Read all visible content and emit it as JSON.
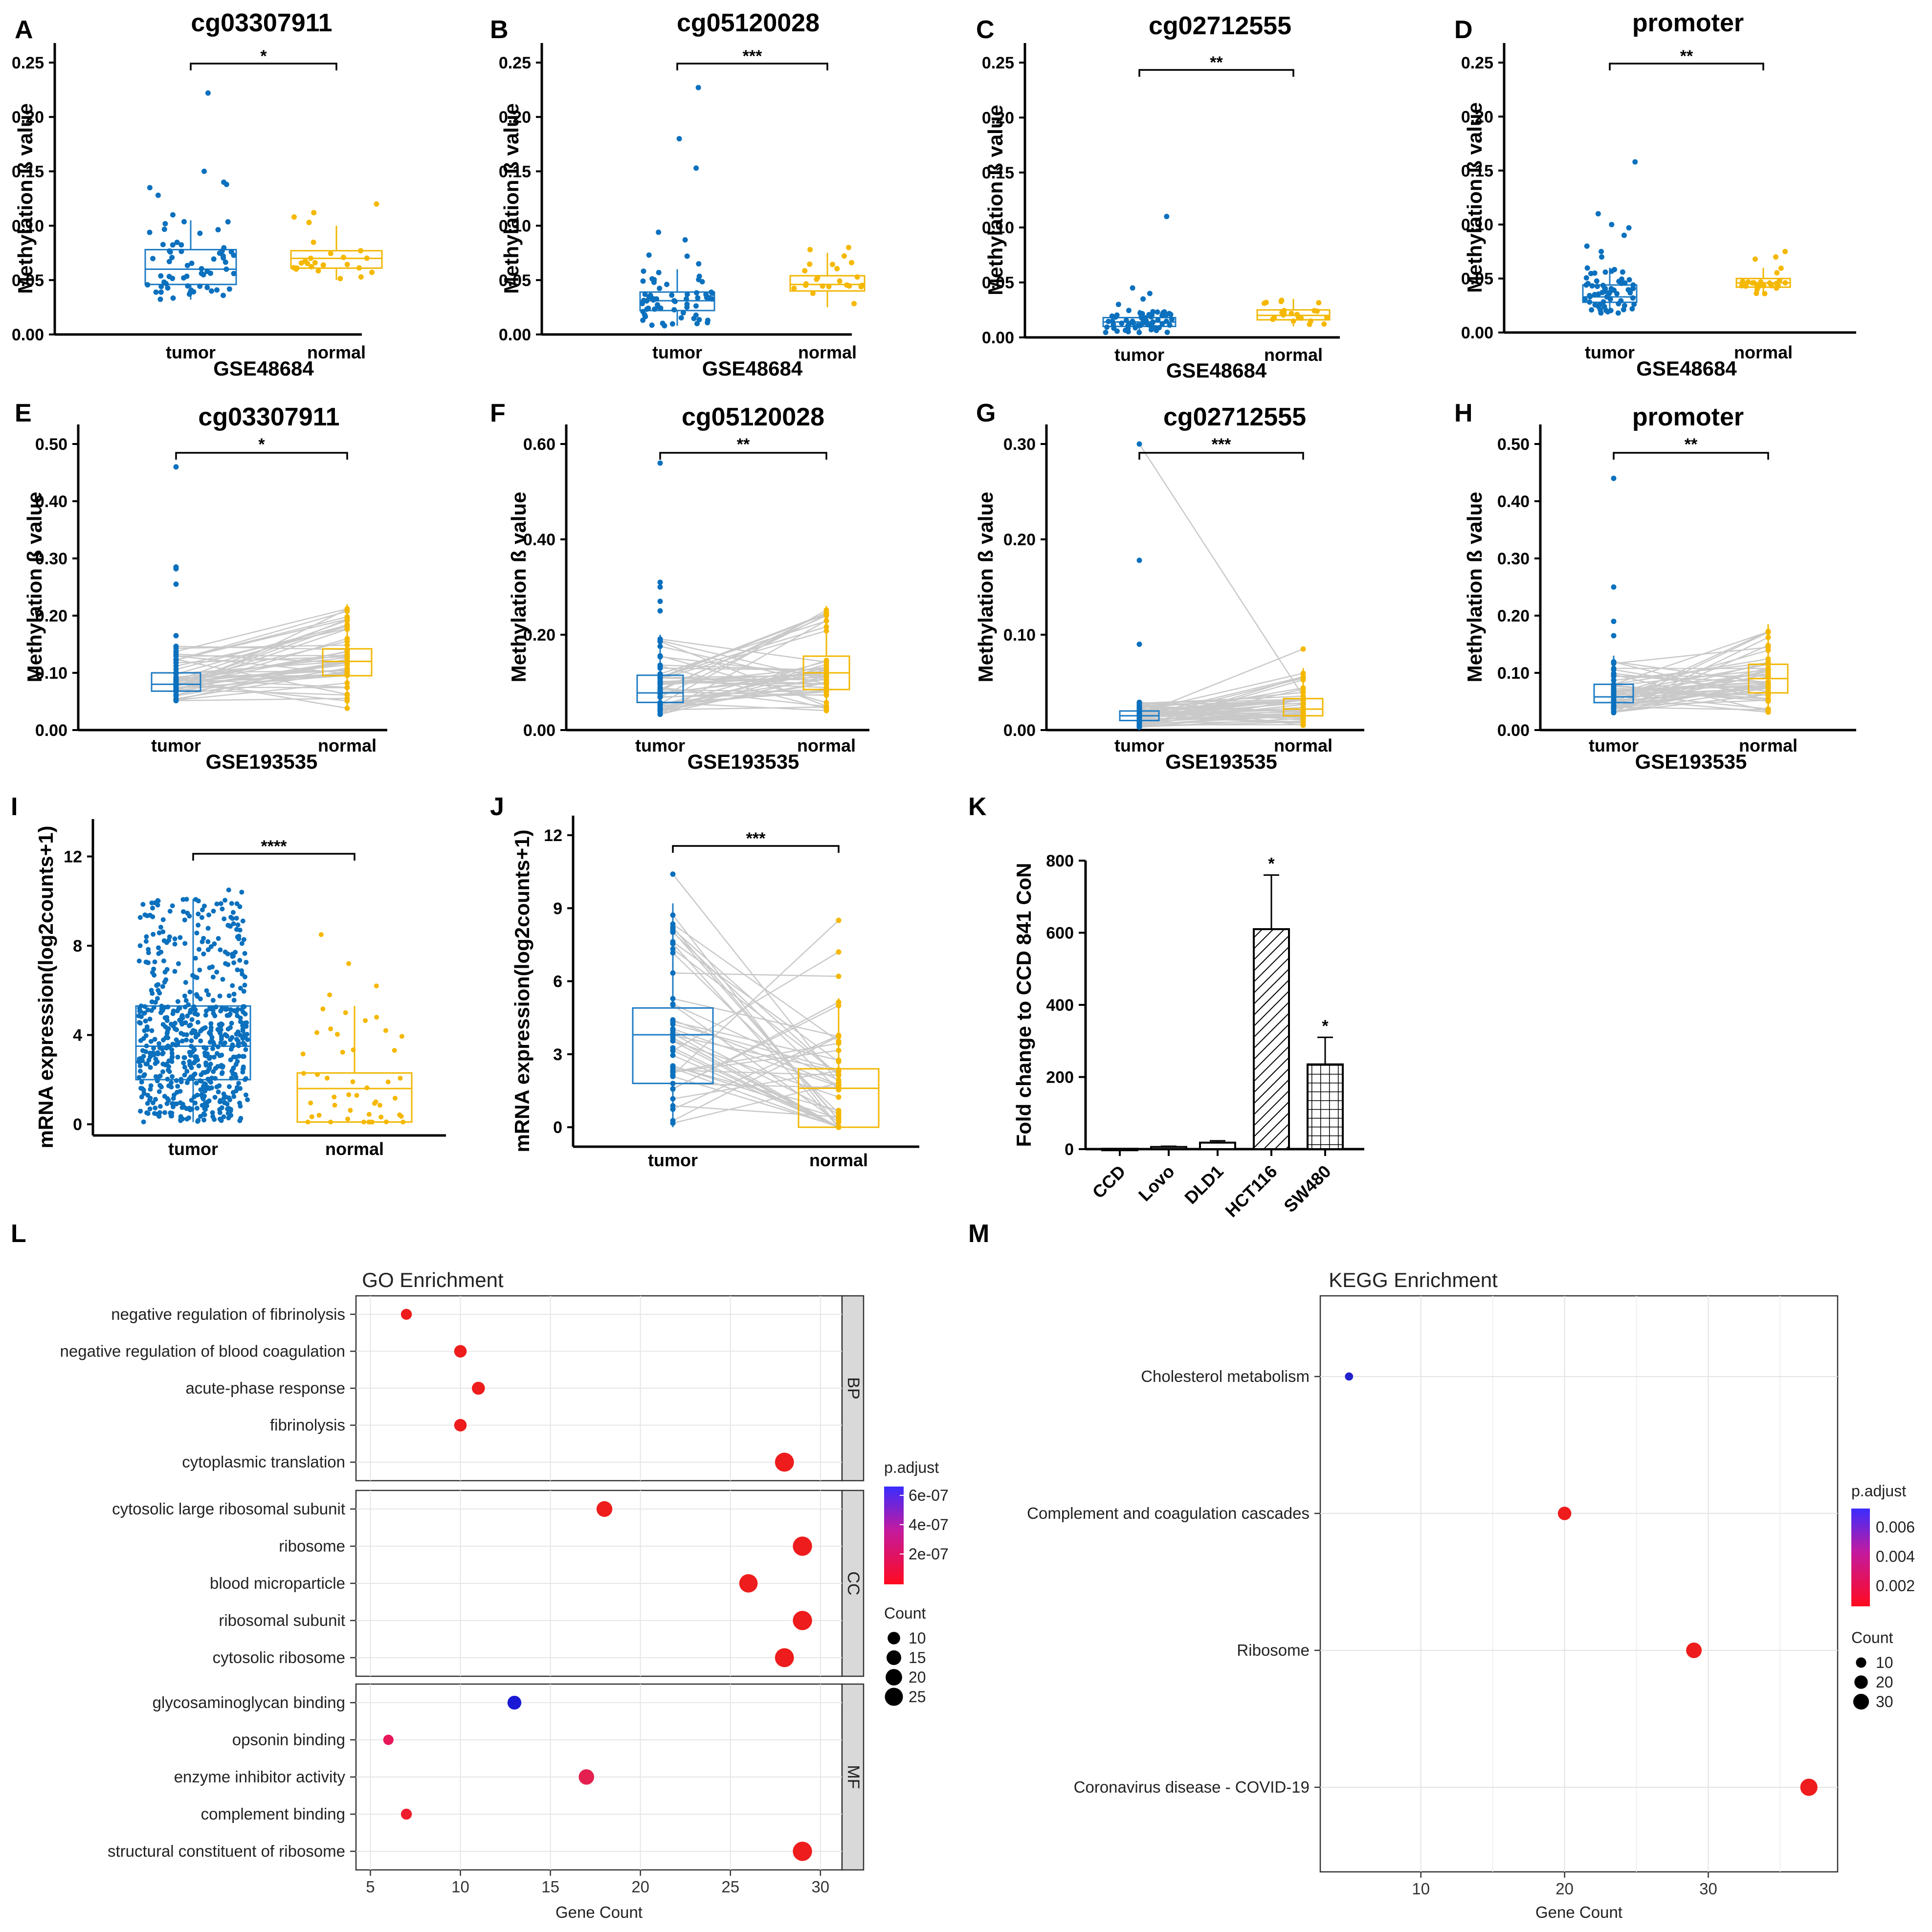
{
  "chart_data": [
    {
      "id": "A",
      "type": "box",
      "title": "cg03307911",
      "xlabel": "GSE48684",
      "ylabel": "Methylation ß value",
      "ylim": [
        0,
        0.25
      ],
      "ticks": [
        0,
        0.05,
        0.1,
        0.15,
        0.2,
        0.25
      ],
      "tick_labels": [
        "0.00",
        "0.05",
        "0.10",
        "0.15",
        "0.20",
        "0.25"
      ],
      "categories": [
        "tumor",
        "normal"
      ],
      "significance": "*",
      "paired": false,
      "boxes": [
        {
          "q1": 0.046,
          "median": 0.06,
          "q3": 0.078,
          "low": 0.032,
          "high": 0.105
        },
        {
          "q1": 0.061,
          "median": 0.07,
          "q3": 0.077,
          "low": 0.05,
          "high": 0.1
        }
      ],
      "outliers": [
        [
          0.222,
          0.15,
          0.14,
          0.138,
          0.135,
          0.128,
          0.11
        ],
        [
          0.12,
          0.112,
          0.108,
          0.103
        ]
      ],
      "n": [
        60,
        22
      ]
    },
    {
      "id": "B",
      "type": "box",
      "title": "cg05120028",
      "xlabel": "GSE48684",
      "ylabel": "Methylation ß value",
      "ylim": [
        0,
        0.25
      ],
      "ticks": [
        0,
        0.05,
        0.1,
        0.15,
        0.2,
        0.25
      ],
      "tick_labels": [
        "0.00",
        "0.05",
        "0.10",
        "0.15",
        "0.20",
        "0.25"
      ],
      "categories": [
        "tumor",
        "normal"
      ],
      "significance": "***",
      "paired": false,
      "boxes": [
        {
          "q1": 0.022,
          "median": 0.031,
          "q3": 0.039,
          "low": 0.008,
          "high": 0.06
        },
        {
          "q1": 0.04,
          "median": 0.046,
          "q3": 0.054,
          "low": 0.025,
          "high": 0.075
        }
      ],
      "outliers": [
        [
          0.227,
          0.18,
          0.153,
          0.094,
          0.087,
          0.073,
          0.072,
          0.065
        ],
        [
          0.08,
          0.078
        ]
      ],
      "n": [
        60,
        22
      ]
    },
    {
      "id": "C",
      "type": "box",
      "title": "cg02712555",
      "xlabel": "GSE48684",
      "ylabel": "Methylation ß value",
      "ylim": [
        0,
        0.25
      ],
      "ticks": [
        0,
        0.05,
        0.1,
        0.15,
        0.2,
        0.25
      ],
      "tick_labels": [
        "0.00",
        "0.05",
        "0.10",
        "0.15",
        "0.20",
        "0.25"
      ],
      "categories": [
        "tumor",
        "normal"
      ],
      "significance": "**",
      "paired": false,
      "boxes": [
        {
          "q1": 0.01,
          "median": 0.014,
          "q3": 0.018,
          "low": 0.004,
          "high": 0.025
        },
        {
          "q1": 0.016,
          "median": 0.02,
          "q3": 0.025,
          "low": 0.01,
          "high": 0.035
        }
      ],
      "outliers": [
        [
          0.11,
          0.045,
          0.04,
          0.035,
          0.03
        ],
        []
      ],
      "n": [
        60,
        22
      ]
    },
    {
      "id": "D",
      "type": "box",
      "title": "promoter",
      "xlabel": "GSE48684",
      "ylabel": "Methylation ß value",
      "ylim": [
        0,
        0.25
      ],
      "ticks": [
        0,
        0.05,
        0.1,
        0.15,
        0.2,
        0.25
      ],
      "tick_labels": [
        "0.00",
        "0.05",
        "0.10",
        "0.15",
        "0.20",
        "0.25"
      ],
      "categories": [
        "tumor",
        "normal"
      ],
      "significance": "**",
      "paired": false,
      "boxes": [
        {
          "q1": 0.028,
          "median": 0.033,
          "q3": 0.044,
          "low": 0.018,
          "high": 0.06
        },
        {
          "q1": 0.042,
          "median": 0.046,
          "q3": 0.05,
          "low": 0.035,
          "high": 0.06
        }
      ],
      "outliers": [
        [
          0.158,
          0.11,
          0.1,
          0.097,
          0.09,
          0.08,
          0.075,
          0.07
        ],
        [
          0.075,
          0.07,
          0.068
        ]
      ],
      "n": [
        60,
        22
      ]
    },
    {
      "id": "E",
      "type": "box",
      "title": "cg03307911",
      "xlabel": "GSE193535",
      "ylabel": "Methylation ß value",
      "ylim": [
        0,
        0.5
      ],
      "ticks": [
        0,
        0.1,
        0.2,
        0.3,
        0.4,
        0.5
      ],
      "tick_labels": [
        "0.00",
        "0.10",
        "0.20",
        "0.30",
        "0.40",
        "0.50"
      ],
      "categories": [
        "tumor",
        "normal"
      ],
      "significance": "*",
      "paired": true,
      "boxes": [
        {
          "q1": 0.068,
          "median": 0.08,
          "q3": 0.1,
          "low": 0.05,
          "high": 0.15
        },
        {
          "q1": 0.095,
          "median": 0.12,
          "q3": 0.142,
          "low": 0.035,
          "high": 0.22
        }
      ],
      "outliers": [
        [
          0.46,
          0.285,
          0.282,
          0.255,
          0.165
        ],
        []
      ],
      "n": [
        50,
        50
      ]
    },
    {
      "id": "F",
      "type": "box",
      "title": "cg05120028",
      "xlabel": "GSE193535",
      "ylabel": "Methylation ß value",
      "ylim": [
        0,
        0.6
      ],
      "ticks": [
        0,
        0.2,
        0.4,
        0.6
      ],
      "tick_labels": [
        "0.00",
        "0.20",
        "0.40",
        "0.60"
      ],
      "categories": [
        "tumor",
        "normal"
      ],
      "significance": "**",
      "paired": true,
      "boxes": [
        {
          "q1": 0.058,
          "median": 0.078,
          "q3": 0.115,
          "low": 0.03,
          "high": 0.2
        },
        {
          "q1": 0.085,
          "median": 0.12,
          "q3": 0.155,
          "low": 0.035,
          "high": 0.26
        }
      ],
      "outliers": [
        [
          0.56,
          0.31,
          0.3,
          0.27,
          0.25
        ],
        []
      ],
      "n": [
        50,
        50
      ]
    },
    {
      "id": "G",
      "type": "box",
      "title": "cg02712555",
      "xlabel": "GSE193535",
      "ylabel": "Methylation ß value",
      "ylim": [
        0,
        0.3
      ],
      "ticks": [
        0,
        0.1,
        0.2,
        0.3
      ],
      "tick_labels": [
        "0.00",
        "0.10",
        "0.20",
        "0.30"
      ],
      "categories": [
        "tumor",
        "normal"
      ],
      "significance": "***",
      "paired": true,
      "boxes": [
        {
          "q1": 0.01,
          "median": 0.015,
          "q3": 0.02,
          "low": 0.003,
          "high": 0.03
        },
        {
          "q1": 0.015,
          "median": 0.022,
          "q3": 0.033,
          "low": 0.005,
          "high": 0.065
        }
      ],
      "outliers": [
        [
          0.3,
          0.178,
          0.09
        ],
        [
          0.085
        ]
      ],
      "n": [
        50,
        50
      ]
    },
    {
      "id": "H",
      "type": "box",
      "title": "promoter",
      "xlabel": "GSE193535",
      "ylabel": "Methylation ß value",
      "ylim": [
        0,
        0.5
      ],
      "ticks": [
        0,
        0.1,
        0.2,
        0.3,
        0.4,
        0.5
      ],
      "tick_labels": [
        "0.00",
        "0.10",
        "0.20",
        "0.30",
        "0.40",
        "0.50"
      ],
      "categories": [
        "tumor",
        "normal"
      ],
      "significance": "**",
      "paired": true,
      "boxes": [
        {
          "q1": 0.048,
          "median": 0.058,
          "q3": 0.08,
          "low": 0.03,
          "high": 0.13
        },
        {
          "q1": 0.065,
          "median": 0.09,
          "q3": 0.115,
          "low": 0.03,
          "high": 0.185
        }
      ],
      "outliers": [
        [
          0.44,
          0.25,
          0.19,
          0.165
        ],
        []
      ],
      "n": [
        50,
        50
      ]
    },
    {
      "id": "I",
      "type": "box",
      "title": "",
      "xlabel": "",
      "ylabel": "mRNA expression(log2counts+1)",
      "ylim": [
        -0.5,
        12.8
      ],
      "ticks": [
        0,
        4,
        8,
        12
      ],
      "tick_labels": [
        "0",
        "4",
        "8",
        "12"
      ],
      "categories": [
        "tumor",
        "normal"
      ],
      "significance": "****",
      "paired": false,
      "boxes": [
        {
          "q1": 2.0,
          "median": 3.5,
          "q3": 5.3,
          "low": 0.1,
          "high": 10.1
        },
        {
          "q1": 0.1,
          "median": 1.6,
          "q3": 2.3,
          "low": 0.1,
          "high": 5.3
        }
      ],
      "outliers": [
        [
          10.5,
          10.4
        ],
        [
          8.5,
          7.2,
          6.2,
          5.8
        ]
      ],
      "n": [
        650,
        45
      ]
    },
    {
      "id": "J",
      "type": "box",
      "title": "",
      "xlabel": "",
      "ylabel": "mRNA expression(log2counts+1)",
      "ylim": [
        -0.8,
        12
      ],
      "ticks": [
        0,
        3,
        6,
        9,
        12
      ],
      "tick_labels": [
        "0",
        "3",
        "6",
        "9",
        "12"
      ],
      "categories": [
        "tumor",
        "normal"
      ],
      "significance": "***",
      "paired": true,
      "boxes": [
        {
          "q1": 1.8,
          "median": 3.8,
          "q3": 4.9,
          "low": 0,
          "high": 9.2
        },
        {
          "q1": 0,
          "median": 1.6,
          "q3": 2.4,
          "low": 0,
          "high": 5.3
        }
      ],
      "outliers": [
        [
          10.4
        ],
        [
          8.5,
          7.2,
          6.2
        ]
      ],
      "n": [
        45,
        45
      ]
    },
    {
      "id": "K",
      "type": "bar",
      "title": "",
      "ylabel": "Fold change to CCD 841 CoN",
      "ylim": [
        0,
        800
      ],
      "ticks": [
        0,
        200,
        400,
        600,
        800
      ],
      "tick_labels": [
        "0",
        "200",
        "400",
        "600",
        "800"
      ],
      "categories": [
        "CCD",
        "Lovo",
        "DLD1",
        "HCT116",
        "SW480"
      ],
      "values": [
        1,
        6,
        18,
        610,
        235
      ],
      "errors": [
        0,
        2,
        5,
        150,
        75
      ],
      "significance": [
        "",
        "",
        "",
        "*",
        "*"
      ],
      "patterns": [
        "none",
        "none",
        "none",
        "diagonal",
        "grid"
      ]
    },
    {
      "id": "L",
      "type": "dot",
      "title": "GO Enrichment",
      "xlabel": "Gene Count",
      "xlim": [
        4.2,
        31.2
      ],
      "xticks": [
        5,
        10,
        15,
        20,
        25,
        30
      ],
      "xtick_labels": [
        "5",
        "10",
        "15",
        "20",
        "25",
        "30"
      ],
      "facets": [
        {
          "name": "BP",
          "terms": [
            {
              "label": "negative regulation of fibrinolysis",
              "count": 7,
              "color": "#ee1c1c"
            },
            {
              "label": "negative regulation of blood coagulation",
              "count": 10,
              "color": "#ee1c1c"
            },
            {
              "label": "acute-phase response",
              "count": 11,
              "color": "#ee1c1c"
            },
            {
              "label": "fibrinolysis",
              "count": 10,
              "color": "#ee1c1c"
            },
            {
              "label": "cytoplasmic translation",
              "count": 28,
              "color": "#ee1c1c"
            }
          ]
        },
        {
          "name": "CC",
          "terms": [
            {
              "label": "cytosolic large ribosomal subunit",
              "count": 18,
              "color": "#ee1c1c"
            },
            {
              "label": "ribosome",
              "count": 29,
              "color": "#ee1c1c"
            },
            {
              "label": "blood microparticle",
              "count": 26,
              "color": "#ee1c1c"
            },
            {
              "label": "ribosomal subunit",
              "count": 29,
              "color": "#ee1c1c"
            },
            {
              "label": "cytosolic ribosome",
              "count": 28,
              "color": "#ee1c1c"
            }
          ]
        },
        {
          "name": "MF",
          "terms": [
            {
              "label": "glycosaminoglycan binding",
              "count": 13,
              "color": "#1a1ad6"
            },
            {
              "label": "opsonin binding",
              "count": 6,
              "color": "#e8175a"
            },
            {
              "label": "enzyme inhibitor activity",
              "count": 17,
              "color": "#e3204f"
            },
            {
              "label": "complement binding",
              "count": 7,
              "color": "#ee1c2c"
            },
            {
              "label": "structural constituent of ribosome",
              "count": 29,
              "color": "#ee1c1c"
            }
          ]
        }
      ],
      "legend_color": {
        "title": "p.adjust",
        "labels": [
          "6e-07",
          "4e-07",
          "2e-07"
        ]
      },
      "legend_size": {
        "title": "Count",
        "labels": [
          "10",
          "15",
          "20",
          "25"
        ],
        "values": [
          10,
          15,
          20,
          25
        ]
      }
    },
    {
      "id": "M",
      "type": "dot",
      "title": "KEGG Enrichment",
      "xlabel": "Gene Count",
      "xlim": [
        3,
        39
      ],
      "xticks": [
        10,
        20,
        30
      ],
      "xtick_labels": [
        "10",
        "20",
        "30"
      ],
      "terms": [
        {
          "label": "Cholesterol metabolism",
          "count": 5,
          "color": "#2222cc"
        },
        {
          "label": "Complement and coagulation cascades",
          "count": 20,
          "color": "#ee1c1c"
        },
        {
          "label": "Ribosome",
          "count": 29,
          "color": "#ee1c1c"
        },
        {
          "label": "Coronavirus disease - COVID-19",
          "count": 37,
          "color": "#ee1c1c"
        }
      ],
      "legend_color": {
        "title": "p.adjust",
        "labels": [
          "0.006",
          "0.004",
          "0.002"
        ]
      },
      "legend_size": {
        "title": "Count",
        "labels": [
          "10",
          "20",
          "30"
        ],
        "values": [
          10,
          20,
          30
        ]
      }
    }
  ]
}
